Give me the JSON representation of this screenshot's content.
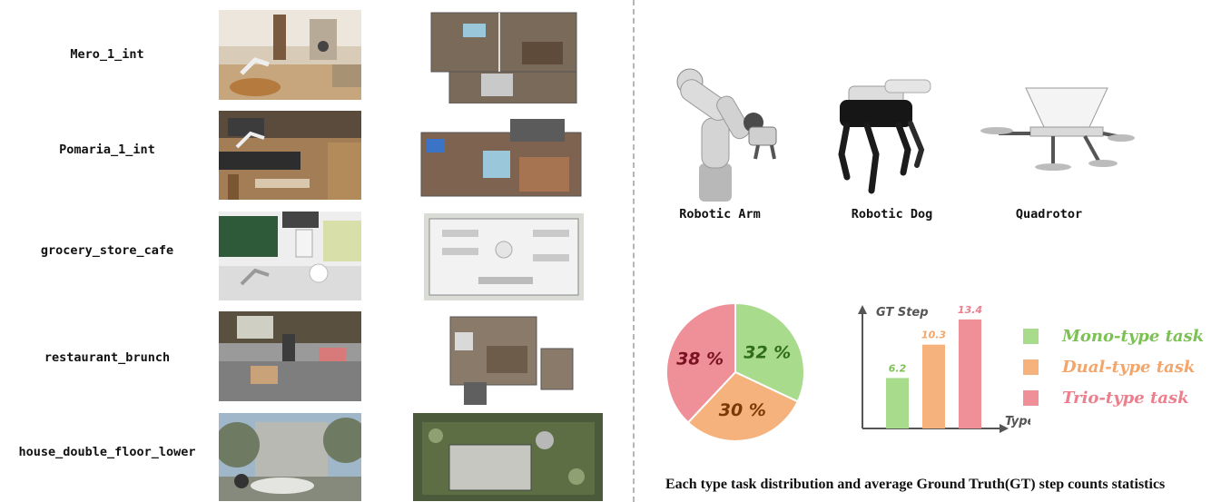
{
  "environments": [
    {
      "label": "Mero_1_int"
    },
    {
      "label": "Pomaria_1_int"
    },
    {
      "label": "grocery_store_cafe"
    },
    {
      "label": "restaurant_brunch"
    },
    {
      "label": "house_double_floor_lower"
    }
  ],
  "robots": [
    {
      "label": "Robotic Arm",
      "icon": "robotic-arm-icon"
    },
    {
      "label": "Robotic Dog",
      "icon": "robotic-dog-icon"
    },
    {
      "label": "Quadrotor",
      "icon": "quadrotor-icon"
    }
  ],
  "chart_data": [
    {
      "type": "pie",
      "slices": [
        {
          "label": "32 %",
          "value": 32,
          "color": "#a9db8c"
        },
        {
          "label": "30 %",
          "value": 30,
          "color": "#f5b27d"
        },
        {
          "label": "38 %",
          "value": 38,
          "color": "#ef8f98"
        }
      ]
    },
    {
      "type": "bar",
      "ylabel": "GT Step",
      "xlabel": "Type",
      "values": [
        6.2,
        10.3,
        13.4
      ],
      "value_labels": [
        "6.2",
        "10.3",
        "13.4"
      ],
      "colors": [
        "#a9db8c",
        "#f5b27d",
        "#ef8f98"
      ],
      "ylim": [
        0,
        14.5
      ]
    }
  ],
  "legend": [
    {
      "label": "Mono-type task",
      "color": "#a9db8c",
      "text_color": "#7cc153"
    },
    {
      "label": "Dual-type task",
      "color": "#f5b27d",
      "text_color": "#f3a56a"
    },
    {
      "label": "Trio-type task",
      "color": "#ef8f98",
      "text_color": "#ec7f8d"
    }
  ],
  "caption": "Each type task distribution and average Ground Truth(GT) step counts statistics",
  "pie_label_colors": [
    "#2f6d1c",
    "#7a3a07",
    "#7a1222"
  ]
}
